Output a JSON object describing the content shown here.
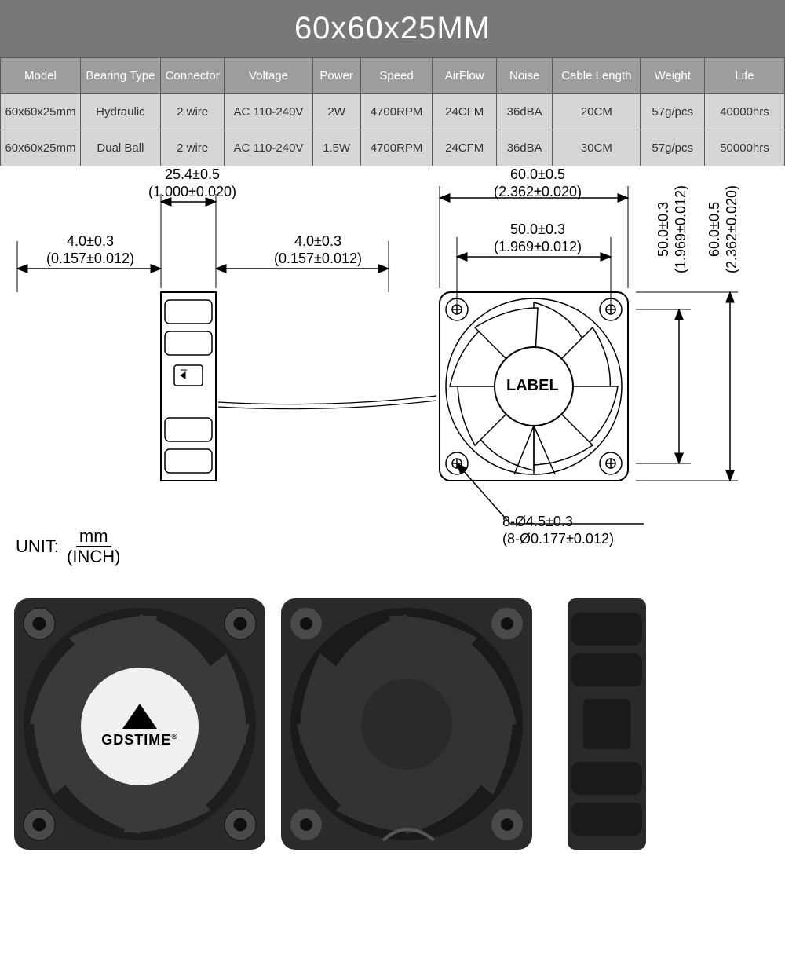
{
  "title": "60x60x25MM",
  "table": {
    "columns": [
      "Model",
      "Bearing Type",
      "Connector",
      "Voltage",
      "Power",
      "Speed",
      "AirFlow",
      "Noise",
      "Cable Length",
      "Weight",
      "Life"
    ],
    "col_widths_pct": [
      10,
      10,
      8,
      11,
      6,
      9,
      8,
      7,
      11,
      8,
      10
    ],
    "rows": [
      [
        "60x60x25mm",
        "Hydraulic",
        "2 wire",
        "AC 110-240V",
        "2W",
        "4700RPM",
        "24CFM",
        "36dBA",
        "20CM",
        "57g/pcs",
        "40000hrs"
      ],
      [
        "60x60x25mm",
        "Dual Ball",
        "2 wire",
        "AC 110-240V",
        "1.5W",
        "4700RPM",
        "24CFM",
        "36dBA",
        "30CM",
        "57g/pcs",
        "50000hrs"
      ]
    ],
    "header_bg": "#9d9d9d",
    "cell_bg": "#d6d6d6",
    "border_color": "#5a5a5a"
  },
  "diagram": {
    "dim_depth_mm": "25.4±0.5",
    "dim_depth_in": "(1.000±0.020)",
    "dim_offset_left_mm": "4.0±0.3",
    "dim_offset_left_in": "(0.157±0.012)",
    "dim_offset_right_mm": "4.0±0.3",
    "dim_offset_right_in": "(0.157±0.012)",
    "dim_width_mm": "60.0±0.5",
    "dim_width_in": "(2.362±0.020)",
    "dim_mount_mm": "50.0±0.3",
    "dim_mount_in": "(1.969±0.012)",
    "dim_height_mm": "60.0±0.5",
    "dim_height_in": "(2.362±0.020)",
    "dim_hmount_mm": "50.0±0.3",
    "dim_hmount_in": "(1.969±0.012)",
    "hole_mm": "8-Ø4.5±0.3",
    "hole_in": "(8-Ø0.177±0.012)",
    "label_text": "LABEL",
    "unit_label": "UNIT:",
    "unit_top": "mm",
    "unit_bottom": "(INCH)"
  },
  "brand": "GDSTIME",
  "brand_suffix": "®",
  "colors": {
    "title_bg": "#787878",
    "fan_body": "#2a2a2a",
    "fan_blade": "#4a4a4a",
    "fan_hub": "#1a1a1a",
    "label_bg": "#f0f0f0"
  },
  "photo_sizes": {
    "front": 320,
    "back": 320,
    "side_w": 130,
    "side_h": 320
  }
}
